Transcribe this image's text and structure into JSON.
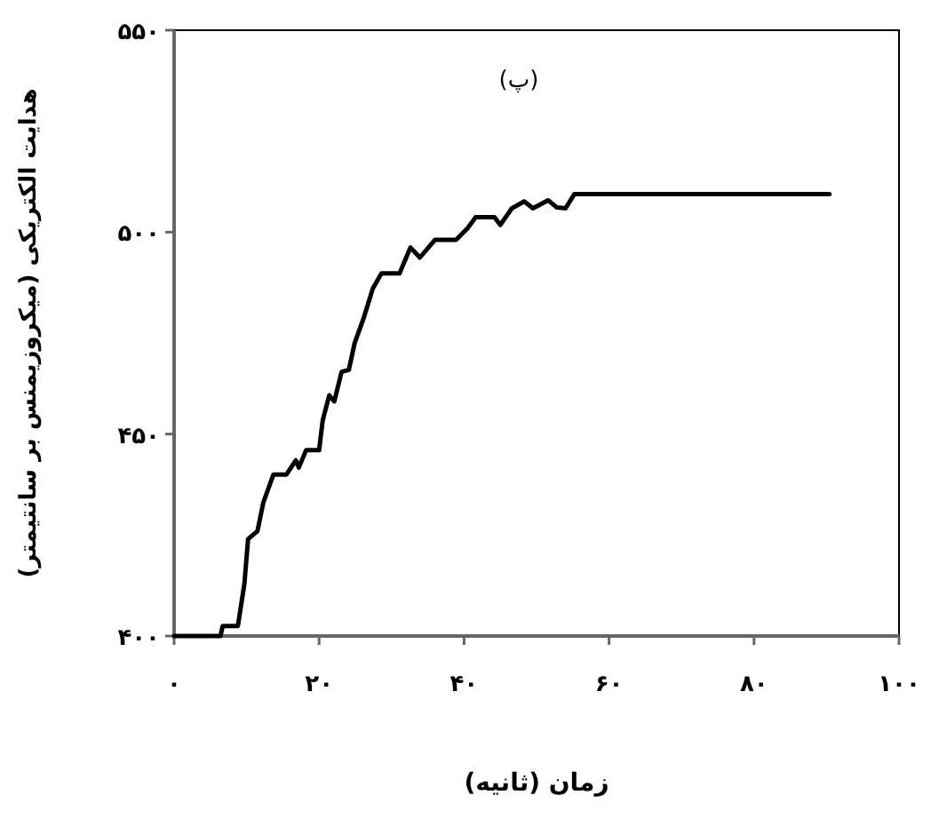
{
  "chart_data": {
    "type": "line",
    "xlabel": "زمان (ثانیه)",
    "ylabel": "هدایت الکتریکی (میکروزیمنس بر سانتیمتر)",
    "annotations": [
      "(پ)"
    ],
    "x": [
      0,
      6.4,
      6.7,
      8.8,
      9.7,
      10.2,
      11.5,
      12.3,
      13.7,
      15.5,
      16.8,
      17.2,
      18.2,
      20.0,
      20.5,
      21.4,
      22.1,
      23.1,
      24.1,
      24.9,
      26.2,
      27.4,
      28.6,
      31.1,
      32.6,
      33.9,
      36.0,
      38.9,
      40.5,
      41.6,
      44.2,
      45.0,
      46.6,
      48.3,
      49.5,
      51.6,
      52.8,
      54.0,
      55.2,
      90.4
    ],
    "values": [
      400,
      400,
      402.5,
      402.5,
      413,
      424,
      426,
      433,
      440,
      440,
      443.5,
      441.7,
      446,
      446,
      453.4,
      459.6,
      458.1,
      465.4,
      465.9,
      472.5,
      479,
      486,
      489.8,
      489.8,
      496.2,
      493.7,
      498.1,
      498.1,
      501,
      503.7,
      503.7,
      501.8,
      505.9,
      507.6,
      505.9,
      507.9,
      506.1,
      505.9,
      509.4,
      509.4
    ],
    "color": "#000000",
    "marker": "none",
    "line_style": "solid",
    "grid": false,
    "xlim": [
      0,
      100
    ],
    "ylim": [
      400,
      550
    ],
    "xticks": [
      {
        "value": 0,
        "label": "۰"
      },
      {
        "value": 20,
        "label": "۲۰"
      },
      {
        "value": 40,
        "label": "۴۰"
      },
      {
        "value": 60,
        "label": "۶۰"
      },
      {
        "value": 80,
        "label": "۸۰"
      },
      {
        "value": 100,
        "label": "۱۰۰"
      }
    ],
    "yticks": [
      {
        "value": 400,
        "label": "۴۰۰"
      },
      {
        "value": 450,
        "label": "۴۵۰"
      },
      {
        "value": 500,
        "label": "۵۰۰"
      },
      {
        "value": 550,
        "label": "۵۵۰"
      }
    ]
  }
}
